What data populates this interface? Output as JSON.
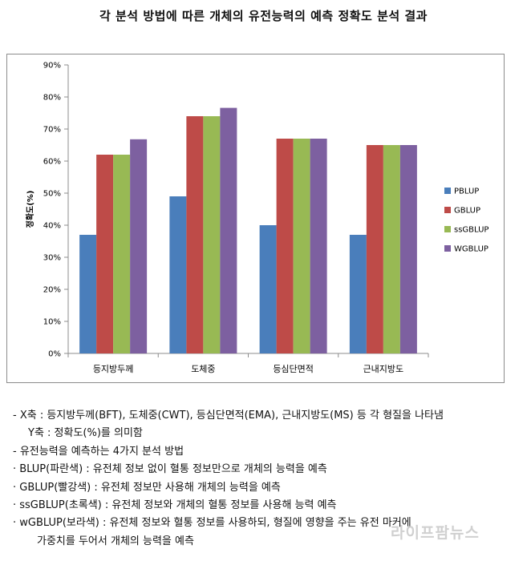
{
  "title": "각 분석 방법에 따른 개체의 유전능력의 예측 정확도 분석 결과",
  "chart_data": {
    "type": "bar",
    "title": "",
    "xlabel": "",
    "ylabel": "정확도(%)",
    "ylim": [
      0,
      90
    ],
    "yticks": [
      "0%",
      "10%",
      "20%",
      "30%",
      "40%",
      "50%",
      "60%",
      "70%",
      "80%",
      "90%"
    ],
    "categories": [
      "등지방두께",
      "도체중",
      "등심단면적",
      "근내지방도"
    ],
    "series": [
      {
        "name": "PBLUP",
        "color": "#4a7ebb",
        "values": [
          37,
          49,
          40,
          37
        ]
      },
      {
        "name": "GBLUP",
        "color": "#be4b48",
        "values": [
          62,
          74,
          67,
          65
        ]
      },
      {
        "name": "ssGBLUP",
        "color": "#98b954",
        "values": [
          62,
          74,
          67,
          65
        ]
      },
      {
        "name": "WGBLUP",
        "color": "#7d60a0",
        "values": [
          66.8,
          76.6,
          67,
          65
        ]
      }
    ],
    "grid": false,
    "legend_position": "right"
  },
  "notes": [
    "- X축 : 등지방두께(BFT), 도체중(CWT), 등심단면적(EMA), 근내지방도(MS) 등 각 형질을 나타냄",
    "Y축 : 정확도(%)를 의미함",
    "- 유전능력을 예측하는 4가지 분석 방법",
    "· BLUP(파란색) : 유전체 정보 없이 혈통 정보만으로 개체의 능력을 예측",
    "· GBLUP(빨강색) : 유전체 정보만 사용해 개체의 능력을 예측",
    "· ssGBLUP(초록색) : 유전체 정보와 개체의 혈통 정보를 사용해 능력 예측",
    "· wGBLUP(보라색) : 유전체 정보와 혈통 정보를 사용하되, 형질에 영향을 주는 유전 마커에",
    "가중치를 두어서 개체의 능력을 예측"
  ],
  "watermark": "라이프팜뉴스"
}
